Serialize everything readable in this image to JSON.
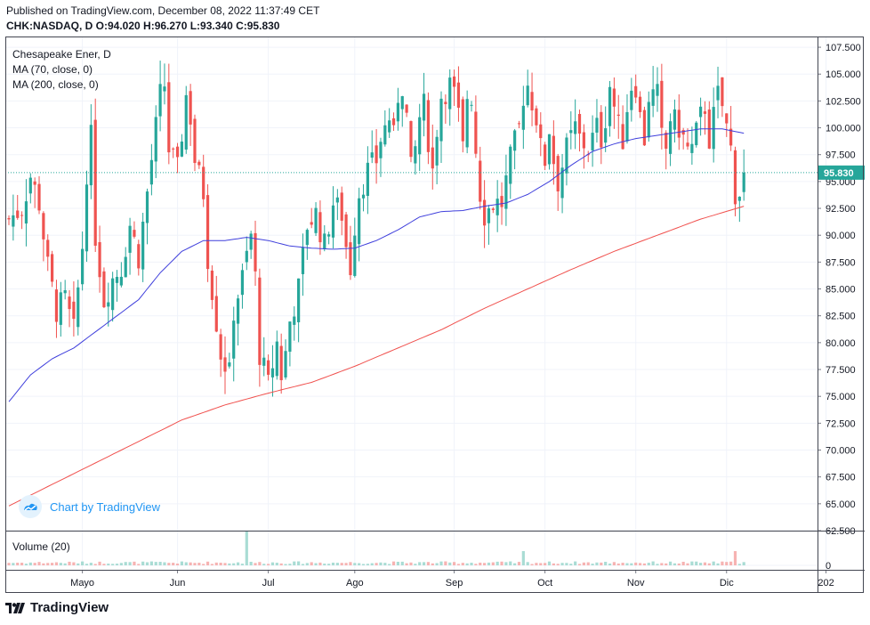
{
  "header": {
    "published": "Published on TradingView.com, December 08, 2022 11:37:49 CET",
    "ohlc": "CHK:NASDAQ, D  O:94.020 H:96.270 L:93.340 C:95.830"
  },
  "legend": {
    "title": "Chesapeake Ener, D",
    "ma70": "MA (70, close, 0)",
    "ma200": "MA (200, close, 0)",
    "volume": "Volume (20)"
  },
  "watermark": "Chart by TradingView",
  "brand": "TradingView",
  "colors": {
    "up": "#26a69a",
    "down": "#ef5350",
    "ma70": "#3f3fdc",
    "ma200": "#f0504d",
    "last_price": "#26a69a",
    "watermark": "#2196f3"
  },
  "chart_data": {
    "type": "candlestick",
    "symbol": "CHK:NASDAQ",
    "interval": "D",
    "last_price": 95.83,
    "last_price_label": "95.830",
    "ylim": [
      62.5,
      108.5
    ],
    "y_ticks": [
      62.5,
      65,
      67.5,
      70,
      72.5,
      75,
      77.5,
      80,
      82.5,
      85,
      87.5,
      90,
      92.5,
      95,
      97.5,
      100,
      102.5,
      105,
      107.5
    ],
    "y_tick_labels": [
      "62.500",
      "65.000",
      "67.500",
      "70.000",
      "72.500",
      "75.000",
      "77.500",
      "80.000",
      "82.500",
      "85.000",
      "87.500",
      "90.000",
      "92.500",
      "95.000",
      "97.500",
      "100.000",
      "102.500",
      "105.000",
      "107.500"
    ],
    "x_labels": [
      {
        "label": "Mayo",
        "index": 17
      },
      {
        "label": "Jun",
        "index": 39
      },
      {
        "label": "Jul",
        "index": 60
      },
      {
        "label": "Ago",
        "index": 80
      },
      {
        "label": "Sep",
        "index": 103
      },
      {
        "label": "Oct",
        "index": 124
      },
      {
        "label": "Nov",
        "index": 145
      },
      {
        "label": "Dic",
        "index": 166
      },
      {
        "label": "202",
        "index": 189
      }
    ],
    "ohlc_waypoints": [
      [
        0,
        91.5
      ],
      [
        3,
        92.5
      ],
      [
        5,
        95.5
      ],
      [
        7,
        93
      ],
      [
        9,
        87
      ],
      [
        11,
        83
      ],
      [
        13,
        84
      ],
      [
        15,
        81
      ],
      [
        17,
        89
      ],
      [
        18,
        96
      ],
      [
        19,
        99
      ],
      [
        20,
        90
      ],
      [
        22,
        84
      ],
      [
        24,
        86
      ],
      [
        26,
        87
      ],
      [
        28,
        91
      ],
      [
        30,
        88
      ],
      [
        31,
        91
      ],
      [
        33,
        97
      ],
      [
        34,
        100
      ],
      [
        35,
        103
      ],
      [
        36,
        104
      ],
      [
        37,
        98
      ],
      [
        39,
        96
      ],
      [
        41,
        103
      ],
      [
        42,
        101
      ],
      [
        43,
        97
      ],
      [
        45,
        94
      ],
      [
        46,
        88
      ],
      [
        48,
        82
      ],
      [
        49,
        79
      ],
      [
        51,
        77
      ],
      [
        52,
        83
      ],
      [
        54,
        86
      ],
      [
        56,
        90
      ],
      [
        57,
        86
      ],
      [
        58,
        79
      ],
      [
        60,
        76
      ],
      [
        62,
        80
      ],
      [
        63,
        77
      ],
      [
        64,
        79
      ],
      [
        65,
        82
      ],
      [
        67,
        85
      ],
      [
        68,
        88
      ],
      [
        69,
        91
      ],
      [
        71,
        92
      ],
      [
        73,
        89
      ],
      [
        75,
        93
      ],
      [
        77,
        92
      ],
      [
        78,
        89
      ],
      [
        79,
        87
      ],
      [
        80,
        91
      ],
      [
        81,
        94
      ],
      [
        83,
        96
      ],
      [
        85,
        97
      ],
      [
        86,
        99
      ],
      [
        88,
        101
      ],
      [
        89,
        99
      ],
      [
        90,
        103
      ],
      [
        91,
        104
      ],
      [
        92,
        101
      ],
      [
        93,
        96
      ],
      [
        94,
        98
      ],
      [
        95,
        101
      ],
      [
        96,
        102
      ],
      [
        97,
        99
      ],
      [
        98,
        96
      ],
      [
        99,
        100
      ],
      [
        100,
        103
      ],
      [
        102,
        104
      ],
      [
        103,
        103
      ],
      [
        104,
        101
      ],
      [
        105,
        98
      ],
      [
        106,
        103
      ],
      [
        107,
        103
      ],
      [
        108,
        98
      ],
      [
        109,
        94
      ],
      [
        110,
        92
      ],
      [
        112,
        93
      ],
      [
        114,
        93
      ],
      [
        116,
        97
      ],
      [
        118,
        100
      ],
      [
        119,
        103
      ],
      [
        120,
        104
      ],
      [
        122,
        101
      ],
      [
        123,
        98
      ],
      [
        124,
        97
      ],
      [
        125,
        100
      ],
      [
        126,
        97
      ],
      [
        127,
        95
      ],
      [
        129,
        98
      ],
      [
        131,
        100
      ],
      [
        132,
        99
      ],
      [
        134,
        98
      ],
      [
        136,
        100
      ],
      [
        137,
        99
      ],
      [
        138,
        101
      ],
      [
        139,
        104
      ],
      [
        140,
        102
      ],
      [
        141,
        100
      ],
      [
        142,
        99
      ],
      [
        143,
        102
      ],
      [
        144,
        104
      ],
      [
        145,
        104
      ],
      [
        146,
        101
      ],
      [
        147,
        99
      ],
      [
        148,
        103
      ],
      [
        150,
        103
      ],
      [
        151,
        99
      ],
      [
        152,
        98
      ],
      [
        153,
        101
      ],
      [
        155,
        100
      ],
      [
        157,
        98
      ],
      [
        158,
        98
      ],
      [
        160,
        101
      ],
      [
        161,
        102
      ],
      [
        162,
        99
      ],
      [
        163,
        101
      ],
      [
        164,
        103
      ],
      [
        165,
        102
      ],
      [
        166,
        100
      ],
      [
        167,
        98
      ],
      [
        168,
        94
      ],
      [
        169,
        94
      ],
      [
        170,
        95.83
      ]
    ],
    "volume_spikes": [
      {
        "index": 55,
        "volume": "high"
      },
      {
        "index": 119,
        "volume": "high"
      },
      {
        "index": 168,
        "volume": "high"
      }
    ],
    "ma70_waypoints": [
      [
        0,
        74.5
      ],
      [
        5,
        77
      ],
      [
        10,
        78.5
      ],
      [
        15,
        79.5
      ],
      [
        20,
        81
      ],
      [
        25,
        82.5
      ],
      [
        30,
        84
      ],
      [
        35,
        86.5
      ],
      [
        40,
        88.5
      ],
      [
        45,
        89.5
      ],
      [
        50,
        89.5
      ],
      [
        55,
        89.8
      ],
      [
        60,
        89.5
      ],
      [
        65,
        89
      ],
      [
        70,
        88.8
      ],
      [
        75,
        88.7
      ],
      [
        80,
        88.8
      ],
      [
        85,
        89.5
      ],
      [
        90,
        90.5
      ],
      [
        95,
        91.7
      ],
      [
        100,
        92.2
      ],
      [
        105,
        92.3
      ],
      [
        110,
        92.7
      ],
      [
        115,
        93
      ],
      [
        120,
        93.8
      ],
      [
        125,
        95
      ],
      [
        130,
        96.5
      ],
      [
        135,
        97.8
      ],
      [
        140,
        98.5
      ],
      [
        145,
        99
      ],
      [
        150,
        99.3
      ],
      [
        155,
        99.6
      ],
      [
        160,
        99.9
      ],
      [
        165,
        99.9
      ],
      [
        170,
        99.5
      ]
    ],
    "ma200_waypoints": [
      [
        0,
        64.8
      ],
      [
        10,
        66.8
      ],
      [
        20,
        68.8
      ],
      [
        30,
        70.8
      ],
      [
        40,
        72.8
      ],
      [
        50,
        74.2
      ],
      [
        60,
        75.3
      ],
      [
        70,
        76.3
      ],
      [
        80,
        77.8
      ],
      [
        90,
        79.5
      ],
      [
        100,
        81.2
      ],
      [
        110,
        83.2
      ],
      [
        120,
        85
      ],
      [
        130,
        86.8
      ],
      [
        140,
        88.5
      ],
      [
        150,
        90
      ],
      [
        160,
        91.5
      ],
      [
        170,
        92.7
      ]
    ]
  }
}
